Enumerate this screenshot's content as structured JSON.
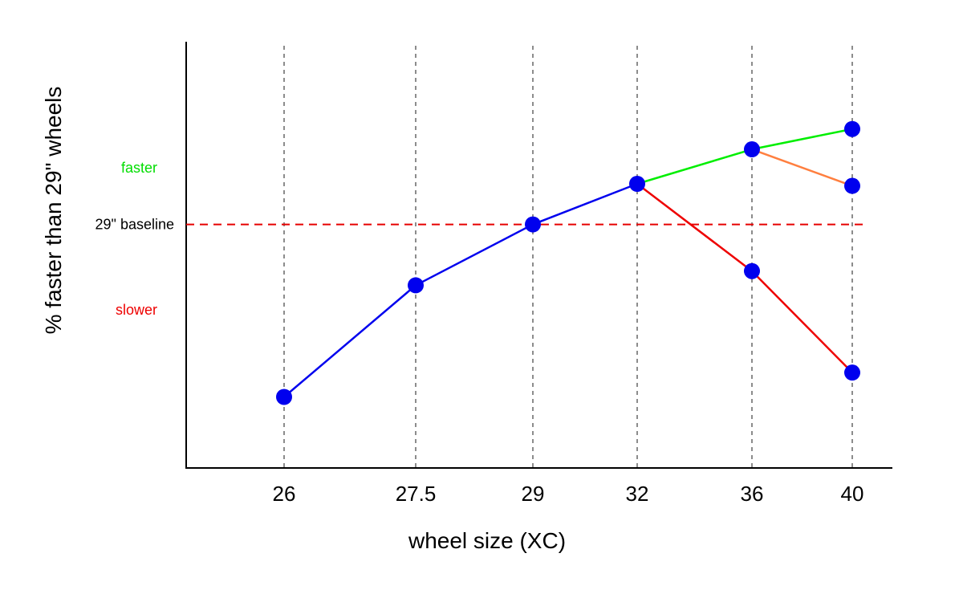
{
  "chart_data": {
    "type": "line",
    "xlabel": "wheel size (XC)",
    "ylabel": "% faster than 29\" wheels",
    "categories": [
      "26",
      "27.5",
      "29",
      "32",
      "36",
      "40"
    ],
    "category_x": [
      26,
      27.5,
      29,
      32,
      36,
      40
    ],
    "ylim": [
      -1.2,
      0.9
    ],
    "yticks": false,
    "grid": "vertical-dashed",
    "baseline": {
      "value": 0,
      "label": "29\" baseline",
      "color": "#e60000"
    },
    "annotations": [
      {
        "text": "faster",
        "color": "#00dd00",
        "y": 0.28
      },
      {
        "text": "slower",
        "color": "#ee0000",
        "y": -0.42
      }
    ],
    "series": [
      {
        "color": "#0000ee",
        "points": [
          [
            26,
            -0.85
          ],
          [
            27.5,
            -0.3
          ],
          [
            29,
            0.0
          ],
          [
            32,
            0.2
          ]
        ]
      },
      {
        "color": "#00ee00",
        "points": [
          [
            32,
            0.2
          ],
          [
            36,
            0.37
          ],
          [
            40,
            0.47
          ]
        ]
      },
      {
        "color": "#ff7f3f",
        "points": [
          [
            36,
            0.37
          ],
          [
            40,
            0.19
          ]
        ]
      },
      {
        "color": "#ee0000",
        "points": [
          [
            32,
            0.2
          ],
          [
            36,
            -0.23
          ],
          [
            40,
            -0.73
          ]
        ]
      }
    ],
    "point_color": "#0000ee",
    "markers": [
      [
        26,
        -0.85
      ],
      [
        27.5,
        -0.3
      ],
      [
        29,
        0.0
      ],
      [
        32,
        0.2
      ],
      [
        36,
        0.37
      ],
      [
        40,
        0.47
      ],
      [
        40,
        0.19
      ],
      [
        36,
        -0.23
      ],
      [
        40,
        -0.73
      ]
    ]
  }
}
